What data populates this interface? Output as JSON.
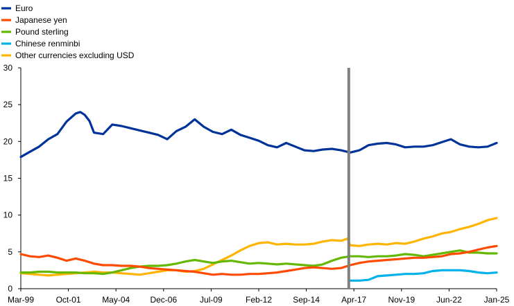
{
  "chart_data": {
    "type": "line",
    "ylim": [
      0,
      30
    ],
    "yticks": [
      "0",
      "5",
      "10",
      "15",
      "20",
      "25",
      "30"
    ],
    "xticks": [
      "Mar-99",
      "Oct-01",
      "May-04",
      "Dec-06",
      "Jul-09",
      "Feb-12",
      "Sep-14",
      "Apr-17",
      "Nov-19",
      "Jun-22",
      "Jan-25"
    ],
    "grid": false,
    "legend": "top-left",
    "vline_x": 2016.92,
    "series": [
      {
        "name": "Euro",
        "color": "#003399",
        "x": [
          1999.0,
          1999.5,
          2000.0,
          2000.5,
          2001.0,
          2001.5,
          2002.0,
          2002.25,
          2002.5,
          2002.75,
          2003.0,
          2003.5,
          2004.0,
          2004.5,
          2005.0,
          2005.5,
          2006.0,
          2006.5,
          2007.0,
          2007.5,
          2008.0,
          2008.5,
          2009.0,
          2009.5,
          2010.0,
          2010.5,
          2011.0,
          2011.5,
          2012.0,
          2012.5,
          2013.0,
          2013.5,
          2014.0,
          2014.5,
          2015.0,
          2015.5,
          2016.0,
          2016.5,
          2017.0,
          2017.5,
          2018.0,
          2018.5,
          2019.0,
          2019.5,
          2020.0,
          2020.5,
          2021.0,
          2021.5,
          2022.0,
          2022.5,
          2023.0,
          2023.5,
          2024.0,
          2024.5,
          2025.0
        ],
        "values": [
          17.9,
          18.6,
          19.3,
          20.3,
          21.0,
          22.7,
          23.8,
          24.0,
          23.6,
          22.8,
          21.2,
          21.0,
          22.3,
          22.1,
          21.8,
          21.5,
          21.2,
          20.9,
          20.3,
          21.4,
          22.0,
          23.0,
          22.0,
          21.3,
          21.0,
          21.6,
          20.9,
          20.5,
          20.1,
          19.5,
          19.2,
          19.8,
          19.3,
          18.8,
          18.7,
          18.9,
          19.0,
          18.8,
          18.5,
          18.8,
          19.5,
          19.7,
          19.8,
          19.6,
          19.2,
          19.3,
          19.3,
          19.5,
          19.9,
          20.3,
          19.6,
          19.3,
          19.2,
          19.3,
          19.8
        ]
      },
      {
        "name": "Japanese yen",
        "color": "#ff4b00",
        "x": [
          1999.0,
          1999.5,
          2000.0,
          2000.5,
          2001.0,
          2001.5,
          2002.0,
          2002.5,
          2003.0,
          2003.5,
          2004.0,
          2004.5,
          2005.0,
          2005.5,
          2006.0,
          2006.5,
          2007.0,
          2007.5,
          2008.0,
          2008.5,
          2009.0,
          2009.5,
          2010.0,
          2010.5,
          2011.0,
          2011.5,
          2012.0,
          2012.5,
          2013.0,
          2013.5,
          2014.0,
          2014.5,
          2015.0,
          2015.5,
          2016.0,
          2016.5,
          2017.0,
          2017.5,
          2018.0,
          2018.5,
          2019.0,
          2019.5,
          2020.0,
          2020.5,
          2021.0,
          2021.5,
          2022.0,
          2022.5,
          2023.0,
          2023.5,
          2024.0,
          2024.5,
          2025.0
        ],
        "values": [
          4.7,
          4.4,
          4.3,
          4.5,
          4.2,
          3.8,
          4.1,
          3.8,
          3.4,
          3.2,
          3.2,
          3.1,
          3.1,
          3.0,
          2.8,
          2.7,
          2.6,
          2.5,
          2.4,
          2.3,
          2.1,
          1.9,
          2.0,
          1.9,
          1.9,
          2.0,
          2.0,
          2.1,
          2.2,
          2.4,
          2.6,
          2.8,
          2.9,
          2.8,
          2.7,
          2.8,
          3.2,
          3.5,
          3.7,
          3.8,
          3.9,
          4.0,
          4.1,
          4.2,
          4.2,
          4.3,
          4.4,
          4.7,
          4.8,
          5.0,
          5.3,
          5.6,
          5.8
        ]
      },
      {
        "name": "Pound sterling",
        "color": "#65b800",
        "x": [
          1999.0,
          1999.5,
          2000.0,
          2000.5,
          2001.0,
          2001.5,
          2002.0,
          2002.5,
          2003.0,
          2003.5,
          2004.0,
          2004.5,
          2005.0,
          2005.5,
          2006.0,
          2006.5,
          2007.0,
          2007.5,
          2008.0,
          2008.5,
          2009.0,
          2009.5,
          2010.0,
          2010.5,
          2011.0,
          2011.5,
          2012.0,
          2012.5,
          2013.0,
          2013.5,
          2014.0,
          2014.5,
          2015.0,
          2015.5,
          2016.0,
          2016.5,
          2017.0,
          2017.5,
          2018.0,
          2018.5,
          2019.0,
          2019.5,
          2020.0,
          2020.5,
          2021.0,
          2021.5,
          2022.0,
          2022.5,
          2023.0,
          2023.5,
          2024.0,
          2024.5,
          2025.0
        ],
        "values": [
          2.2,
          2.2,
          2.3,
          2.3,
          2.2,
          2.2,
          2.2,
          2.1,
          2.1,
          2.0,
          2.2,
          2.5,
          2.8,
          3.0,
          3.1,
          3.1,
          3.2,
          3.4,
          3.7,
          3.9,
          3.7,
          3.5,
          3.7,
          3.8,
          3.6,
          3.4,
          3.5,
          3.4,
          3.3,
          3.4,
          3.3,
          3.2,
          3.1,
          3.3,
          3.8,
          4.2,
          4.4,
          4.4,
          4.3,
          4.4,
          4.4,
          4.5,
          4.7,
          4.6,
          4.4,
          4.6,
          4.8,
          5.0,
          5.2,
          4.9,
          4.9,
          4.8,
          4.8
        ]
      },
      {
        "name": "Chinese renminbi",
        "color": "#00b1ea",
        "x": [
          2017.0,
          2017.5,
          2018.0,
          2018.5,
          2019.0,
          2019.5,
          2020.0,
          2020.5,
          2021.0,
          2021.5,
          2022.0,
          2022.5,
          2023.0,
          2023.5,
          2024.0,
          2024.5,
          2025.0
        ],
        "values": [
          1.1,
          1.1,
          1.2,
          1.7,
          1.8,
          1.9,
          2.0,
          2.0,
          2.1,
          2.4,
          2.5,
          2.5,
          2.5,
          2.4,
          2.2,
          2.1,
          2.2
        ]
      },
      {
        "name": "Other currencies excluding USD",
        "color": "#ffb400",
        "x": [
          1999.0,
          1999.5,
          2000.0,
          2000.5,
          2001.0,
          2001.5,
          2002.0,
          2002.5,
          2003.0,
          2003.5,
          2004.0,
          2004.5,
          2005.0,
          2005.5,
          2006.0,
          2006.5,
          2007.0,
          2007.5,
          2008.0,
          2008.5,
          2009.0,
          2009.5,
          2010.0,
          2010.5,
          2011.0,
          2011.5,
          2012.0,
          2012.5,
          2013.0,
          2013.5,
          2014.0,
          2014.5,
          2015.0,
          2015.5,
          2016.0,
          2016.5,
          2016.85,
          2017.0,
          2017.5,
          2018.0,
          2018.5,
          2019.0,
          2019.5,
          2020.0,
          2020.5,
          2021.0,
          2021.5,
          2022.0,
          2022.5,
          2023.0,
          2023.5,
          2024.0,
          2024.5,
          2025.0
        ],
        "values": [
          2.1,
          2.0,
          1.9,
          1.8,
          1.9,
          2.0,
          2.1,
          2.2,
          2.3,
          2.2,
          2.2,
          2.1,
          2.0,
          1.9,
          2.1,
          2.3,
          2.5,
          2.5,
          2.3,
          2.4,
          2.7,
          3.3,
          3.9,
          4.5,
          5.2,
          5.8,
          6.2,
          6.3,
          6.0,
          6.1,
          6.0,
          6.0,
          6.1,
          6.4,
          6.6,
          6.5,
          6.8,
          5.9,
          5.8,
          6.0,
          6.1,
          6.0,
          6.2,
          6.1,
          6.4,
          6.8,
          7.1,
          7.5,
          7.7,
          8.1,
          8.4,
          8.8,
          9.3,
          9.6
        ]
      }
    ]
  }
}
